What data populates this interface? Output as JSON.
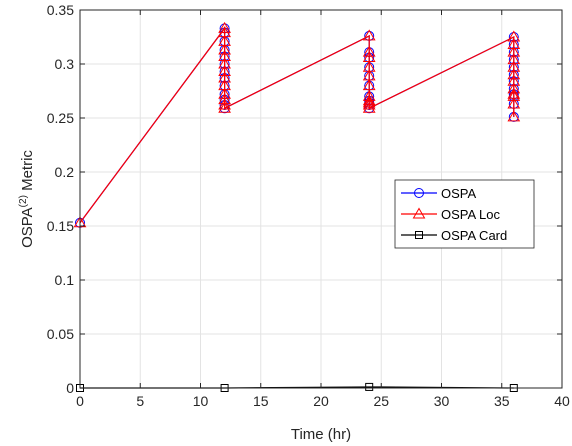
{
  "chart_data": {
    "type": "line",
    "xlabel": "Time (hr)",
    "ylabel": {
      "base": "OSPA",
      "superscript": "(2)",
      "suffix": " Metric"
    },
    "xlim": [
      0,
      40
    ],
    "ylim": [
      0,
      0.35
    ],
    "xticks": [
      "0",
      "5",
      "10",
      "15",
      "20",
      "25",
      "30",
      "35",
      "40"
    ],
    "yticks": [
      "0",
      "0.05",
      "0.1",
      "0.15",
      "0.2",
      "0.25",
      "0.3",
      "0.35"
    ],
    "grid": true,
    "legend_position": "center-right",
    "series": [
      {
        "name": "OSPA",
        "color": "#0000ff",
        "marker": "circle",
        "x": [
          0,
          12,
          12,
          12,
          12,
          12,
          12,
          12,
          12,
          12,
          12,
          12,
          12,
          12,
          24,
          24,
          24,
          24,
          24,
          24,
          24,
          24,
          24,
          24,
          24,
          36,
          36,
          36,
          36,
          36,
          36,
          36,
          36,
          36,
          36,
          36,
          36
        ],
        "y": [
          0.153,
          0.333,
          0.329,
          0.321,
          0.313,
          0.307,
          0.3,
          0.293,
          0.287,
          0.28,
          0.272,
          0.267,
          0.262,
          0.259,
          0.326,
          0.311,
          0.306,
          0.297,
          0.289,
          0.28,
          0.27,
          0.266,
          0.264,
          0.262,
          0.259,
          0.325,
          0.318,
          0.311,
          0.304,
          0.297,
          0.29,
          0.284,
          0.277,
          0.272,
          0.27,
          0.263,
          0.251
        ]
      },
      {
        "name": "OSPA Loc",
        "color": "#ff0000",
        "marker": "triangle",
        "x": [
          0,
          12,
          12,
          12,
          12,
          12,
          12,
          12,
          12,
          12,
          12,
          12,
          12,
          12,
          24,
          24,
          24,
          24,
          24,
          24,
          24,
          24,
          24,
          24,
          24,
          36,
          36,
          36,
          36,
          36,
          36,
          36,
          36,
          36,
          36,
          36,
          36
        ],
        "y": [
          0.153,
          0.333,
          0.329,
          0.321,
          0.313,
          0.307,
          0.3,
          0.293,
          0.287,
          0.28,
          0.272,
          0.267,
          0.262,
          0.259,
          0.326,
          0.311,
          0.306,
          0.297,
          0.289,
          0.28,
          0.27,
          0.266,
          0.264,
          0.262,
          0.259,
          0.325,
          0.318,
          0.311,
          0.304,
          0.297,
          0.29,
          0.284,
          0.277,
          0.272,
          0.27,
          0.263,
          0.251
        ]
      },
      {
        "name": "OSPA Card",
        "color": "#000000",
        "marker": "square",
        "x": [
          0,
          12,
          24,
          36
        ],
        "y": [
          0,
          0,
          0.001,
          0
        ]
      }
    ]
  }
}
